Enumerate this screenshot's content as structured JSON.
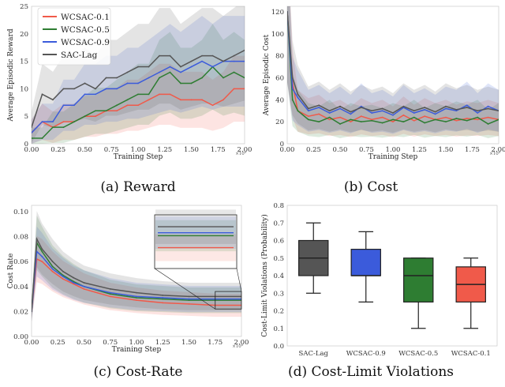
{
  "captions": [
    "(a) Reward",
    "(b) Cost",
    "(c) Cost-Rate",
    "(d) Cost-Limit Violations"
  ],
  "sci_note": "×10⁶",
  "colors": {
    "WCSAC-0.1": "#f05a4a",
    "WCSAC-0.5": "#2e7d32",
    "WCSAC-0.9": "#3b5bdb",
    "SAC-Lag": "#555555"
  },
  "chart_data": [
    {
      "type": "line",
      "xlabel": "Training Step",
      "ylabel": "Average Episodic Reward",
      "xlim": [
        0,
        2.0
      ],
      "ylim": [
        0,
        25
      ],
      "xticks": [
        "0.00",
        "0.25",
        "0.50",
        "0.75",
        "1.00",
        "1.25",
        "1.50",
        "1.75",
        "2.00"
      ],
      "yticks": [
        "0",
        "5",
        "10",
        "15",
        "20",
        "25"
      ],
      "legend": "top-left",
      "series": [
        {
          "name": "WCSAC-0.1",
          "x": [
            0,
            0.1,
            0.2,
            0.3,
            0.4,
            0.5,
            0.6,
            0.7,
            0.8,
            0.9,
            1.0,
            1.1,
            1.2,
            1.3,
            1.4,
            1.5,
            1.6,
            1.7,
            1.8,
            1.9,
            2.0
          ],
          "y": [
            2,
            4,
            3,
            4,
            4,
            5,
            5,
            6,
            6,
            7,
            7,
            8,
            9,
            9,
            8,
            8,
            8,
            7,
            8,
            10,
            10
          ]
        },
        {
          "name": "WCSAC-0.5",
          "x": [
            0,
            0.1,
            0.2,
            0.3,
            0.4,
            0.5,
            0.6,
            0.7,
            0.8,
            0.9,
            1.0,
            1.1,
            1.2,
            1.3,
            1.4,
            1.5,
            1.6,
            1.7,
            1.8,
            1.9,
            2.0
          ],
          "y": [
            1,
            1,
            3,
            3,
            4,
            5,
            6,
            6,
            7,
            8,
            9,
            9,
            12,
            13,
            11,
            11,
            12,
            14,
            12,
            13,
            12
          ]
        },
        {
          "name": "WCSAC-0.9",
          "x": [
            0,
            0.1,
            0.2,
            0.3,
            0.4,
            0.5,
            0.6,
            0.7,
            0.8,
            0.9,
            1.0,
            1.1,
            1.2,
            1.3,
            1.4,
            1.5,
            1.6,
            1.7,
            1.8,
            1.9,
            2.0
          ],
          "y": [
            2,
            4,
            4,
            7,
            7,
            9,
            9,
            10,
            10,
            11,
            11,
            12,
            13,
            14,
            13,
            14,
            15,
            14,
            15,
            15,
            15
          ]
        },
        {
          "name": "SAC-Lag",
          "x": [
            0,
            0.1,
            0.2,
            0.3,
            0.4,
            0.5,
            0.6,
            0.7,
            0.8,
            0.9,
            1.0,
            1.1,
            1.2,
            1.3,
            1.4,
            1.5,
            1.6,
            1.7,
            1.8,
            1.9,
            2.0
          ],
          "y": [
            3,
            9,
            8,
            10,
            10,
            11,
            10,
            12,
            12,
            13,
            14,
            14,
            16,
            16,
            14,
            15,
            16,
            16,
            15,
            16,
            17
          ]
        }
      ]
    },
    {
      "type": "line",
      "xlabel": "Training Step",
      "ylabel": "Average Episodic Cost",
      "xlim": [
        0,
        2.0
      ],
      "ylim": [
        0,
        125
      ],
      "xticks": [
        "0.00",
        "0.25",
        "0.50",
        "0.75",
        "1.00",
        "1.25",
        "1.50",
        "1.75",
        "2.00"
      ],
      "yticks": [
        "0",
        "20",
        "40",
        "60",
        "80",
        "100",
        "120"
      ],
      "series": [
        {
          "name": "WCSAC-0.1",
          "x": [
            0,
            0.05,
            0.1,
            0.2,
            0.3,
            0.4,
            0.5,
            0.6,
            0.7,
            0.8,
            0.9,
            1.0,
            1.1,
            1.2,
            1.3,
            1.4,
            1.5,
            1.6,
            1.7,
            1.8,
            1.9,
            2.0
          ],
          "y": [
            120,
            55,
            30,
            25,
            27,
            22,
            24,
            20,
            25,
            22,
            24,
            20,
            26,
            21,
            25,
            22,
            24,
            21,
            23,
            22,
            24,
            22
          ]
        },
        {
          "name": "WCSAC-0.5",
          "x": [
            0,
            0.05,
            0.1,
            0.2,
            0.3,
            0.4,
            0.5,
            0.6,
            0.7,
            0.8,
            0.9,
            1.0,
            1.1,
            1.2,
            1.3,
            1.4,
            1.5,
            1.6,
            1.7,
            1.8,
            1.9,
            2.0
          ],
          "y": [
            120,
            40,
            30,
            22,
            20,
            24,
            18,
            22,
            20,
            21,
            19,
            22,
            20,
            24,
            19,
            22,
            20,
            23,
            21,
            24,
            18,
            22
          ]
        },
        {
          "name": "WCSAC-0.9",
          "x": [
            0,
            0.05,
            0.1,
            0.2,
            0.3,
            0.4,
            0.5,
            0.6,
            0.7,
            0.8,
            0.9,
            1.0,
            1.1,
            1.2,
            1.3,
            1.4,
            1.5,
            1.6,
            1.7,
            1.8,
            1.9,
            2.0
          ],
          "y": [
            120,
            50,
            42,
            30,
            33,
            28,
            32,
            27,
            34,
            28,
            30,
            26,
            33,
            28,
            31,
            27,
            32,
            30,
            35,
            28,
            34,
            30
          ]
        },
        {
          "name": "SAC-Lag",
          "x": [
            0,
            0.05,
            0.1,
            0.2,
            0.3,
            0.4,
            0.5,
            0.6,
            0.7,
            0.8,
            0.9,
            1.0,
            1.1,
            1.2,
            1.3,
            1.4,
            1.5,
            1.6,
            1.7,
            1.8,
            1.9,
            2.0
          ],
          "y": [
            120,
            60,
            45,
            32,
            35,
            30,
            34,
            29,
            33,
            30,
            32,
            28,
            34,
            30,
            33,
            29,
            34,
            31,
            33,
            30,
            32,
            30
          ]
        }
      ]
    },
    {
      "type": "line",
      "xlabel": "Training Step",
      "ylabel": "Cost Rate",
      "xlim": [
        0,
        2.0
      ],
      "ylim": [
        0,
        0.105
      ],
      "xticks": [
        "0.00",
        "0.25",
        "0.50",
        "0.75",
        "1.00",
        "1.25",
        "1.50",
        "1.75",
        "2.00"
      ],
      "yticks": [
        "0.00",
        "0.02",
        "0.04",
        "0.06",
        "0.08",
        "0.10"
      ],
      "series": [
        {
          "name": "WCSAC-0.1",
          "x": [
            0,
            0.05,
            0.1,
            0.2,
            0.3,
            0.4,
            0.5,
            0.75,
            1.0,
            1.25,
            1.5,
            1.75,
            2.0
          ],
          "y": [
            0.02,
            0.062,
            0.06,
            0.052,
            0.046,
            0.042,
            0.038,
            0.032,
            0.029,
            0.027,
            0.026,
            0.025,
            0.025
          ]
        },
        {
          "name": "WCSAC-0.5",
          "x": [
            0,
            0.05,
            0.1,
            0.2,
            0.3,
            0.4,
            0.5,
            0.75,
            1.0,
            1.25,
            1.5,
            1.75,
            2.0
          ],
          "y": [
            0.02,
            0.075,
            0.068,
            0.056,
            0.049,
            0.044,
            0.04,
            0.034,
            0.031,
            0.03,
            0.029,
            0.029,
            0.029
          ]
        },
        {
          "name": "WCSAC-0.9",
          "x": [
            0,
            0.05,
            0.1,
            0.2,
            0.3,
            0.4,
            0.5,
            0.75,
            1.0,
            1.25,
            1.5,
            1.75,
            2.0
          ],
          "y": [
            0.02,
            0.068,
            0.064,
            0.054,
            0.048,
            0.043,
            0.04,
            0.035,
            0.032,
            0.031,
            0.03,
            0.03,
            0.03
          ]
        },
        {
          "name": "SAC-Lag",
          "x": [
            0,
            0.05,
            0.1,
            0.2,
            0.3,
            0.4,
            0.5,
            0.75,
            1.0,
            1.25,
            1.5,
            1.75,
            2.0
          ],
          "y": [
            0.02,
            0.078,
            0.07,
            0.06,
            0.052,
            0.047,
            0.043,
            0.038,
            0.035,
            0.033,
            0.032,
            0.032,
            0.032
          ]
        }
      ]
    },
    {
      "type": "box",
      "ylabel": "Cost-Limit Violations (Probability)",
      "ylim": [
        0,
        0.8
      ],
      "yticks": [
        "0.0",
        "0.1",
        "0.2",
        "0.3",
        "0.4",
        "0.5",
        "0.6",
        "0.7",
        "0.8"
      ],
      "categories": [
        "SAC-Lag",
        "WCSAC-0.9",
        "WCSAC-0.5",
        "WCSAC-0.1"
      ],
      "boxes": [
        {
          "name": "SAC-Lag",
          "min": 0.3,
          "q1": 0.4,
          "median": 0.5,
          "q3": 0.6,
          "max": 0.7
        },
        {
          "name": "WCSAC-0.9",
          "min": 0.25,
          "q1": 0.4,
          "median": 0.4,
          "q3": 0.55,
          "max": 0.65
        },
        {
          "name": "WCSAC-0.5",
          "min": 0.1,
          "q1": 0.25,
          "median": 0.4,
          "q3": 0.5,
          "max": 0.5
        },
        {
          "name": "WCSAC-0.1",
          "min": 0.1,
          "q1": 0.25,
          "median": 0.35,
          "q3": 0.45,
          "max": 0.5
        }
      ]
    }
  ]
}
